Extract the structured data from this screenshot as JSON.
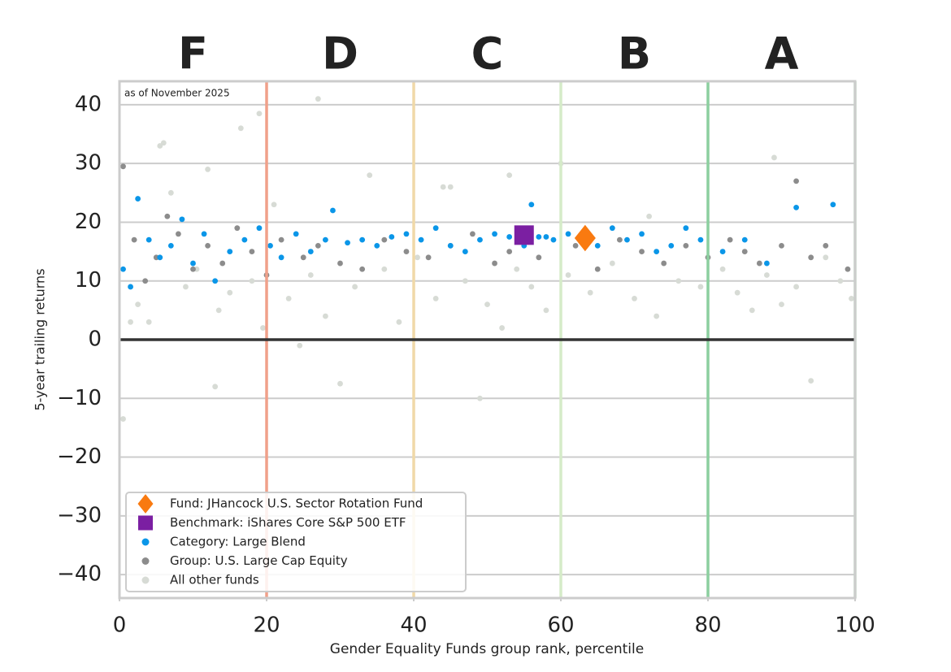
{
  "chart_data": {
    "type": "scatter",
    "annotation": "as of November 2025",
    "xlabel": "Gender Equality Funds group rank, percentile",
    "ylabel": "5-year trailing returns",
    "xlim": [
      0,
      100
    ],
    "ylim": [
      -44,
      44
    ],
    "xticks": [
      0,
      20,
      40,
      60,
      80,
      100
    ],
    "yticks": [
      40,
      30,
      20,
      10,
      0,
      {
        "value": -10,
        "label": "−10"
      },
      {
        "value": -20,
        "label": "−20"
      },
      {
        "value": -30,
        "label": "−30"
      },
      {
        "value": -40,
        "label": "−40"
      }
    ],
    "grid": true,
    "legend": "lower left",
    "grades": [
      {
        "label": "F",
        "color": "#c8102e",
        "x": 10
      },
      {
        "label": "D",
        "color": "#db4a14",
        "x": 30
      },
      {
        "label": "C",
        "color": "#dbb55a",
        "x": 50
      },
      {
        "label": "B",
        "color": "#a8d68e",
        "x": 70
      },
      {
        "label": "A",
        "color": "#1a9a4a",
        "x": 90
      }
    ],
    "thresholds": [
      {
        "value": 20,
        "color": "#f0a08a"
      },
      {
        "value": 40,
        "color": "#f0d9a8"
      },
      {
        "value": 60,
        "color": "#d5ebc8"
      },
      {
        "value": 80,
        "color": "#8ccf9f"
      },
      {
        "value": 100,
        "color": "#b9dcc4"
      }
    ],
    "series": [
      {
        "name": "All other funds",
        "color": "#d7dbd5",
        "marker": "circle",
        "x": [
          0.5,
          2.5,
          4,
          5.5,
          7,
          9,
          10.5,
          12,
          13.5,
          15,
          16.5,
          18,
          19.5,
          21,
          23,
          24.5,
          26,
          28,
          30,
          32,
          34,
          36,
          38,
          40.5,
          43,
          45,
          47,
          50,
          52,
          54,
          56,
          58,
          61,
          64,
          67,
          70,
          73,
          76,
          79,
          82,
          84,
          86,
          88,
          90,
          92,
          94,
          96,
          98,
          99.5,
          1.5,
          6,
          13,
          19,
          27,
          44,
          49,
          53,
          60,
          72,
          89
        ],
        "values": [
          -13.5,
          6,
          3,
          33,
          25,
          9,
          12,
          29,
          5,
          8,
          36,
          10,
          2,
          23,
          7,
          -1,
          11,
          4,
          -7.5,
          9,
          28,
          12,
          3,
          14,
          7,
          26,
          10,
          6,
          2,
          12,
          9,
          5,
          11,
          8,
          13,
          7,
          4,
          10,
          9,
          12,
          8,
          5,
          11,
          6,
          9,
          -7,
          14,
          10,
          7,
          3,
          33.5,
          -8,
          38.5,
          41,
          26,
          -10,
          28,
          30,
          21,
          31
        ]
      },
      {
        "name": "Group: U.S. Large Cap Equity",
        "color": "#8c8c8c",
        "marker": "circle",
        "x": [
          0.5,
          2,
          3.5,
          5,
          6.5,
          8,
          10,
          12,
          14,
          16,
          18,
          20,
          22,
          25,
          27,
          30,
          33,
          36,
          39,
          42,
          45,
          48,
          51,
          53,
          57,
          62,
          65,
          68,
          71,
          74,
          77,
          80,
          83,
          85,
          87,
          90,
          92,
          94,
          96,
          99
        ],
        "values": [
          29.5,
          17,
          10,
          14,
          21,
          18,
          12,
          16,
          13,
          19,
          15,
          11,
          17,
          14,
          16,
          13,
          12,
          17,
          15,
          14,
          16,
          18,
          13,
          15,
          14,
          16,
          12,
          17,
          15,
          13,
          16,
          14,
          17,
          15,
          13,
          16,
          27,
          14,
          16,
          12
        ]
      },
      {
        "name": "Category: Large Blend",
        "color": "#0a96e8",
        "marker": "circle",
        "x": [
          0.5,
          1.5,
          2.5,
          4,
          5.5,
          7,
          8.5,
          10,
          11.5,
          13,
          15,
          17,
          19,
          20.5,
          22,
          24,
          26,
          28,
          29,
          31,
          33,
          35,
          37,
          39,
          41,
          43,
          45,
          47,
          49,
          51,
          53,
          55,
          56,
          57,
          58,
          59,
          61,
          65,
          67,
          69,
          71,
          73,
          75,
          77,
          79,
          82,
          85,
          88,
          92,
          97
        ],
        "values": [
          12,
          9,
          24,
          17,
          14,
          16,
          20.5,
          13,
          18,
          10,
          15,
          17,
          19,
          16,
          14,
          18,
          15,
          17,
          22,
          16.5,
          17,
          16,
          17.5,
          18,
          17,
          19,
          16,
          15,
          17,
          18,
          17.5,
          16,
          23,
          17.5,
          17.5,
          17,
          18,
          16,
          19,
          17,
          18,
          15,
          16,
          19,
          17,
          15,
          17,
          13,
          22.5,
          23
        ]
      },
      {
        "name": "Benchmark: iShares Core S&P 500 ETF",
        "color": "#7b1fa2",
        "marker": "square",
        "x": [
          55
        ],
        "values": [
          17.8
        ]
      },
      {
        "name": "Fund: JHancock U.S. Sector Rotation Fund",
        "color": "#f97a10",
        "marker": "diamond",
        "x": [
          63.3
        ],
        "values": [
          17.3
        ]
      }
    ]
  }
}
